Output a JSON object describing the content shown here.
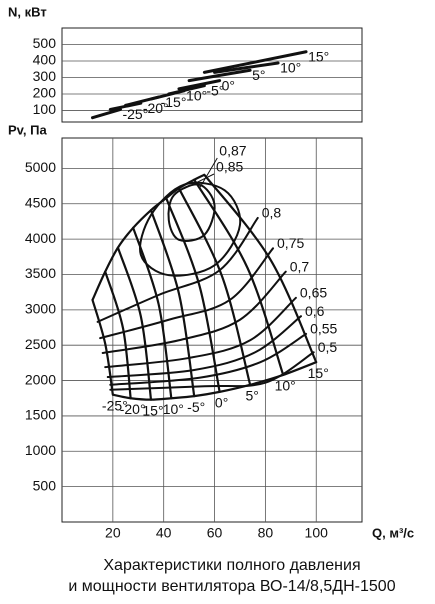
{
  "chart_data": [
    {
      "type": "line",
      "y_label": "N, кВт",
      "xlim": [
        0,
        118
      ],
      "ylim": [
        30,
        600
      ],
      "yticks": [
        100,
        200,
        300,
        400,
        500
      ],
      "grid": true,
      "color": "#111",
      "series": [
        {
          "name": "-25°",
          "q": [
            12,
            23
          ],
          "n": [
            56,
            106
          ]
        },
        {
          "name": "-20°",
          "q": [
            19,
            31
          ],
          "n": [
            106,
            144
          ]
        },
        {
          "name": "-15°",
          "q": [
            25,
            38
          ],
          "n": [
            131,
            181
          ]
        },
        {
          "name": "10°",
          "q": [
            35,
            48
          ],
          "n": [
            169,
            219
          ]
        },
        {
          "name": "-5°",
          "q": [
            42,
            56
          ],
          "n": [
            200,
            250
          ]
        },
        {
          "name": "0°",
          "q": [
            46,
            62
          ],
          "n": [
            231,
            281
          ]
        },
        {
          "name": "5°",
          "q": [
            50,
            74
          ],
          "n": [
            281,
            344
          ]
        },
        {
          "name": "10°",
          "q": [
            60,
            85
          ],
          "n": [
            331,
            388
          ]
        },
        {
          "name": "15°",
          "q": [
            56,
            96
          ],
          "n": [
            331,
            456
          ]
        }
      ]
    },
    {
      "type": "line",
      "y_label": "Pv, Па",
      "x_label": "Q, м³/с",
      "xlim": [
        0,
        118
      ],
      "ylim": [
        0,
        5430
      ],
      "xticks": [
        20,
        40,
        60,
        80,
        100
      ],
      "yticks": [
        500,
        1000,
        1500,
        2000,
        2500,
        3000,
        3500,
        4000,
        4500,
        5000
      ],
      "grid": true,
      "color": "#111",
      "angle_curves": [
        {
          "name": "-25°",
          "q": [
            12,
            17,
            20
          ],
          "p": [
            3140,
            2520,
            1800
          ]
        },
        {
          "name": "-20°",
          "q": [
            17,
            24,
            27
          ],
          "p": [
            3540,
            2740,
            1750
          ]
        },
        {
          "name": "15°",
          "q": [
            22,
            31,
            35
          ],
          "p": [
            3880,
            2910,
            1730
          ]
        },
        {
          "name": "10°",
          "q": [
            28,
            38,
            43
          ],
          "p": [
            4160,
            3080,
            1750
          ]
        },
        {
          "name": "-5°",
          "q": [
            35,
            46,
            52
          ],
          "p": [
            4410,
            3230,
            1780
          ]
        },
        {
          "name": "0°",
          "q": [
            41,
            54,
            62
          ],
          "p": [
            4580,
            3350,
            1840
          ]
        },
        {
          "name": "5°",
          "q": [
            46,
            63,
            74
          ],
          "p": [
            4720,
            3470,
            1940
          ]
        },
        {
          "name": "10°",
          "q": [
            52,
            73,
            87
          ],
          "p": [
            4840,
            3590,
            2080
          ]
        },
        {
          "name": "15°",
          "q": [
            56,
            82,
            100
          ],
          "p": [
            4910,
            3710,
            2260
          ]
        }
      ],
      "efficiency_curves": [
        {
          "name": "0,87",
          "closed": true,
          "q": [
            44,
            54,
            60,
            56,
            46,
            42
          ],
          "p": [
            4620,
            4770,
            4480,
            4060,
            3990,
            4270
          ]
        },
        {
          "name": "0,85",
          "closed": true,
          "q": [
            35,
            48,
            64,
            70,
            60,
            42,
            31
          ],
          "p": [
            4340,
            4770,
            4690,
            4200,
            3630,
            3490,
            3780
          ]
        },
        {
          "name": "0,8",
          "closed": false,
          "q": [
            77,
            62,
            38,
            14
          ],
          "p": [
            4300,
            3560,
            3210,
            2830
          ]
        },
        {
          "name": "0,75",
          "closed": false,
          "q": [
            83,
            66,
            42,
            15
          ],
          "p": [
            3870,
            3140,
            2860,
            2600
          ]
        },
        {
          "name": "0,7",
          "closed": false,
          "q": [
            88,
            70,
            46,
            16
          ],
          "p": [
            3540,
            2860,
            2570,
            2390
          ]
        },
        {
          "name": "0,65",
          "closed": false,
          "q": [
            92,
            74,
            50,
            17
          ],
          "p": [
            3170,
            2570,
            2320,
            2190
          ]
        },
        {
          "name": "0,6",
          "closed": false,
          "q": [
            94,
            76,
            52,
            18
          ],
          "p": [
            2910,
            2400,
            2150,
            2050
          ]
        },
        {
          "name": "0,55",
          "closed": false,
          "q": [
            96,
            78,
            54,
            19
          ],
          "p": [
            2660,
            2260,
            2040,
            1940
          ]
        },
        {
          "name": "0,5",
          "closed": false,
          "q": [
            99,
            80,
            56,
            19
          ],
          "p": [
            2400,
            1970,
            1920,
            1870
          ]
        }
      ]
    }
  ],
  "caption": [
    "Характеристики полного давления",
    "и мощности вентилятора ВО-14/8,5ДН-1500"
  ]
}
